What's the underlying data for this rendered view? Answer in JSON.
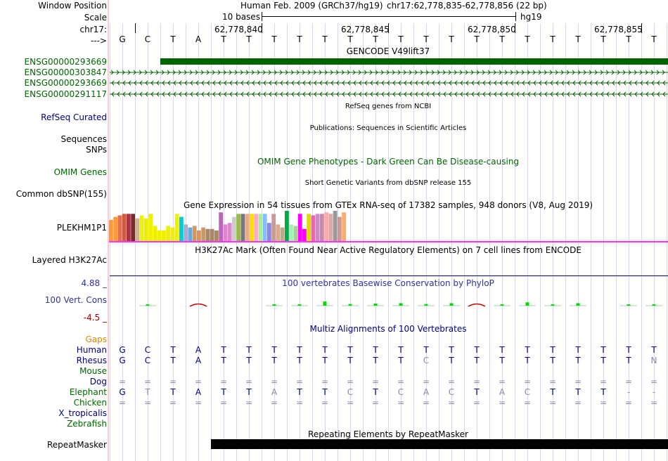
{
  "labels": {
    "window_position": "Window Position",
    "scale": "Scale",
    "chrom": "chr17:",
    "arrow": "--->",
    "gene1": "ENSG00000293669",
    "gene2": "ENSG00000303847",
    "gene3": "ENSG00000293669",
    "gene4": "ENSG00000291117",
    "refseq": "RefSeq Curated",
    "sequences": "Sequences",
    "snps": "SNPs",
    "omim": "OMIM Genes",
    "dbsnp": "Common dbSNP(155)",
    "gtex_gene": "PLEKHM1P1",
    "h3k27ac": "Layered H3K27Ac",
    "cons_max": "4.88 _",
    "cons_label": "100 Vert. Cons",
    "cons_min": "-4.5 _",
    "gaps": "Gaps",
    "repeatmasker": "RepeatMasker"
  },
  "header": {
    "assembly": "Human Feb. 2009 (GRCh37/hg19)",
    "position": "chr17:62,778,835-62,778,856 (22 bp)",
    "scale_text": "10 bases",
    "db": "hg19"
  },
  "coords": [
    "62,778,840",
    "62,778,845",
    "62,778,850",
    "62,778,855"
  ],
  "sequence": [
    "G",
    "C",
    "T",
    "A",
    "T",
    "T",
    "T",
    "T",
    "T",
    "T",
    "T",
    "T",
    "T",
    "T",
    "T",
    "T",
    "T",
    "T",
    "T",
    "T",
    "T",
    "T"
  ],
  "titles": {
    "gencode": "GENCODE V49lift37",
    "refseq": "RefSeq genes from NCBI",
    "publications": "Publications: Sequences in Scientific Articles",
    "omim": "OMIM Gene Phenotypes - Dark Green Can Be Disease-causing",
    "dbsnp": "Short Genetic Variants from dbSNP release 155",
    "gtex": "Gene Expression in 54 tissues from GTEx RNA-seq of 17382 samples, 948 donors (V8, Aug 2019)",
    "h3k27ac": "H3K27Ac Mark (Often Found Near Active Regulatory Elements) on 7 cell lines from ENCODE",
    "phylop": "100 vertebrates Basewise Conservation by PhyloP",
    "multiz": "Multiz Alignments of 100 Vertebrates",
    "repeatmasker": "Repeating Elements by RepeatMasker"
  },
  "gtex_values": [
    0.7,
    0.8,
    0.85,
    0.9,
    0.9,
    0.9,
    0.75,
    0.85,
    0.75,
    0.9,
    0.5,
    0.35,
    0.35,
    0.5,
    0.45,
    0.9,
    0.8,
    0.55,
    0.45,
    0.5,
    0.35,
    0.45,
    0.4,
    0.4,
    0.35,
    0.95,
    0.55,
    0.6,
    0.8,
    0.9,
    0.9,
    0.9,
    0.9,
    0.9,
    0.9,
    0.9,
    0.6,
    0.9,
    0.55,
    0.45,
    1.0,
    0.55,
    0.5,
    0.9,
    0.4,
    0.9,
    0.85,
    0.9,
    0.9,
    0.95,
    0.9,
    1.0,
    0.8,
    0.95
  ],
  "gtex_colors": [
    "#ff9a3c",
    "#ff9a3c",
    "#e07050",
    "#cc5b44",
    "#aa3344",
    "#7a2a2a",
    "#d2b48c",
    "#efef00",
    "#efef00",
    "#efef00",
    "#efef00",
    "#efef00",
    "#efef00",
    "#efef00",
    "#efef00",
    "#efef00",
    "#00ccdd",
    "#aaaacc",
    "#66aadd",
    "#cc9966",
    "#cc9966",
    "#cc9966",
    "#aa8866",
    "#aa8866",
    "#aa8866",
    "#bb66bb",
    "#dd88cc",
    "#dd88cc",
    "#cccccc",
    "#99bb44",
    "#777777",
    "#eeaa88",
    "#ffdd00",
    "#ffaacc",
    "#aaee99",
    "#88bbff",
    "#8888dd",
    "#cc9999",
    "#ddaa88",
    "#bbaa88",
    "#00aa44",
    "#aaeebb",
    "#aacc99",
    "#ff00ff",
    "#ff00ff",
    "#dddd00",
    "#ee66aa",
    "#cc88cc",
    "#cc88aa",
    "#ffaaaa",
    "#ddaaaa",
    "#999999",
    "#cc9999",
    "#ffaa66"
  ],
  "phylop": [
    0,
    0.12,
    0,
    -0.22,
    0,
    0,
    0.1,
    0.15,
    0.5,
    0.2,
    0.25,
    0.3,
    0.2,
    0.3,
    -0.2,
    0.1,
    0.4,
    0.1,
    0.3,
    0,
    0.15,
    0.1
  ],
  "multiz": {
    "species": [
      "Human",
      "Rhesus",
      "Mouse",
      "Dog",
      "Elephant",
      "Chicken",
      "X_tropicalis",
      "Zebrafish"
    ],
    "human": [
      "G",
      "C",
      "T",
      "A",
      "T",
      "T",
      "T",
      "T",
      "T",
      "T",
      "T",
      "T",
      "T",
      "T",
      "T",
      "T",
      "T",
      "T",
      "T",
      "T",
      "T",
      "T"
    ],
    "rhesus": [
      "G",
      "C",
      "T",
      "A",
      "T",
      "T",
      "T",
      "T",
      "T",
      "T",
      "T",
      "T",
      "C",
      "T",
      "T",
      "T",
      "T",
      "T",
      "T",
      "T",
      "T",
      "N"
    ],
    "dog": [
      "=",
      "=",
      "=",
      "=",
      "=",
      "=",
      "=",
      "=",
      "=",
      "=",
      "=",
      "=",
      "=",
      "=",
      "=",
      "=",
      "=",
      "=",
      "=",
      "=",
      "=",
      "="
    ],
    "elephant": [
      "G",
      "T",
      "T",
      "A",
      "T",
      "T",
      "A",
      "T",
      "T",
      "C",
      "T",
      "C",
      "A",
      "C",
      "T",
      "A",
      "C",
      "T",
      "T",
      "T",
      "-",
      "-"
    ],
    "chicken": [
      "=",
      "=",
      "=",
      "=",
      "=",
      "=",
      "=",
      "=",
      "=",
      "=",
      "=",
      "=",
      "=",
      "=",
      "=",
      "=",
      "=",
      "=",
      "=",
      "=",
      "=",
      "="
    ]
  },
  "colors": {
    "navy": "#000080",
    "green": "#006600",
    "gene": "#006400",
    "phylop_pos": "#00dd00",
    "phylop_neg": "#cc0000",
    "gtex_base": "#ff33ff",
    "gaps": "#dd8800",
    "grid": "#d8d8e8"
  }
}
